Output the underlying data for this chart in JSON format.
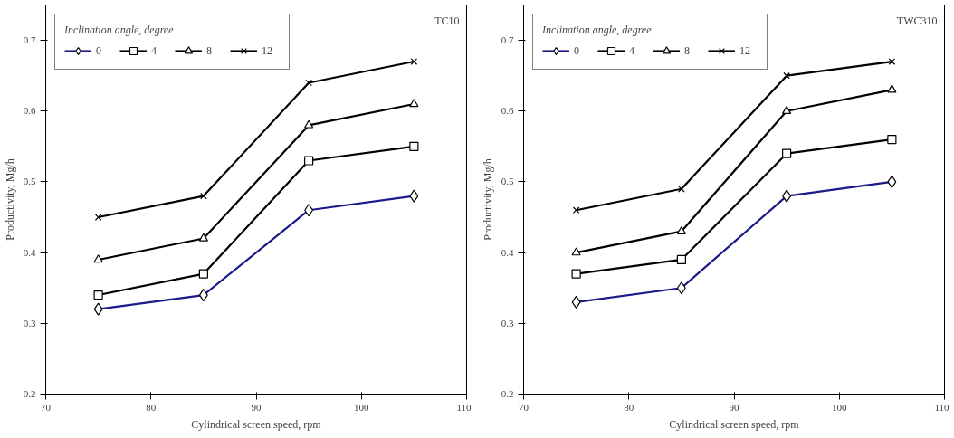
{
  "chart_data": [
    {
      "type": "line",
      "annotations": [
        "TC10"
      ],
      "xlabel": "Cylindrical screen speed, rpm",
      "ylabel": "Productivity, Mg/h",
      "legend_title": "Inclination angle, degree",
      "legend": "top left",
      "grid": false,
      "x": [
        75,
        85,
        95,
        105
      ],
      "xlim": [
        70,
        110
      ],
      "xticks": [
        70,
        80,
        90,
        100,
        110
      ],
      "ylim": [
        0.2,
        0.75
      ],
      "yticks": [
        0.2,
        0.3,
        0.4,
        0.5,
        0.6,
        0.7
      ],
      "series": [
        {
          "name": "0",
          "color": "#1a1a8c",
          "marker": "diamond",
          "values": [
            0.32,
            0.34,
            0.46,
            0.48
          ]
        },
        {
          "name": "4",
          "color": "#000000",
          "marker": "square",
          "values": [
            0.34,
            0.37,
            0.53,
            0.55
          ]
        },
        {
          "name": "8",
          "color": "#000000",
          "marker": "triangle",
          "values": [
            0.39,
            0.42,
            0.58,
            0.61
          ]
        },
        {
          "name": "12",
          "color": "#000000",
          "marker": "cross",
          "values": [
            0.45,
            0.48,
            0.64,
            0.67
          ]
        }
      ]
    },
    {
      "type": "line",
      "annotations": [
        "TWC310"
      ],
      "xlabel": "Cylindrical screen speed, rpm",
      "ylabel": "Productivity, Mg/h",
      "legend_title": "Inclination angle, degree",
      "legend": "top left",
      "grid": false,
      "x": [
        75,
        85,
        95,
        105
      ],
      "xlim": [
        70,
        110
      ],
      "xticks": [
        70,
        80,
        90,
        100,
        110
      ],
      "ylim": [
        0.2,
        0.75
      ],
      "yticks": [
        0.2,
        0.3,
        0.4,
        0.5,
        0.6,
        0.7
      ],
      "series": [
        {
          "name": "0",
          "color": "#1a1a8c",
          "marker": "diamond",
          "values": [
            0.33,
            0.35,
            0.48,
            0.5
          ]
        },
        {
          "name": "4",
          "color": "#000000",
          "marker": "square",
          "values": [
            0.37,
            0.39,
            0.54,
            0.56
          ]
        },
        {
          "name": "8",
          "color": "#000000",
          "marker": "triangle",
          "values": [
            0.4,
            0.43,
            0.6,
            0.63
          ]
        },
        {
          "name": "12",
          "color": "#000000",
          "marker": "cross",
          "values": [
            0.46,
            0.49,
            0.65,
            0.67
          ]
        }
      ]
    }
  ]
}
